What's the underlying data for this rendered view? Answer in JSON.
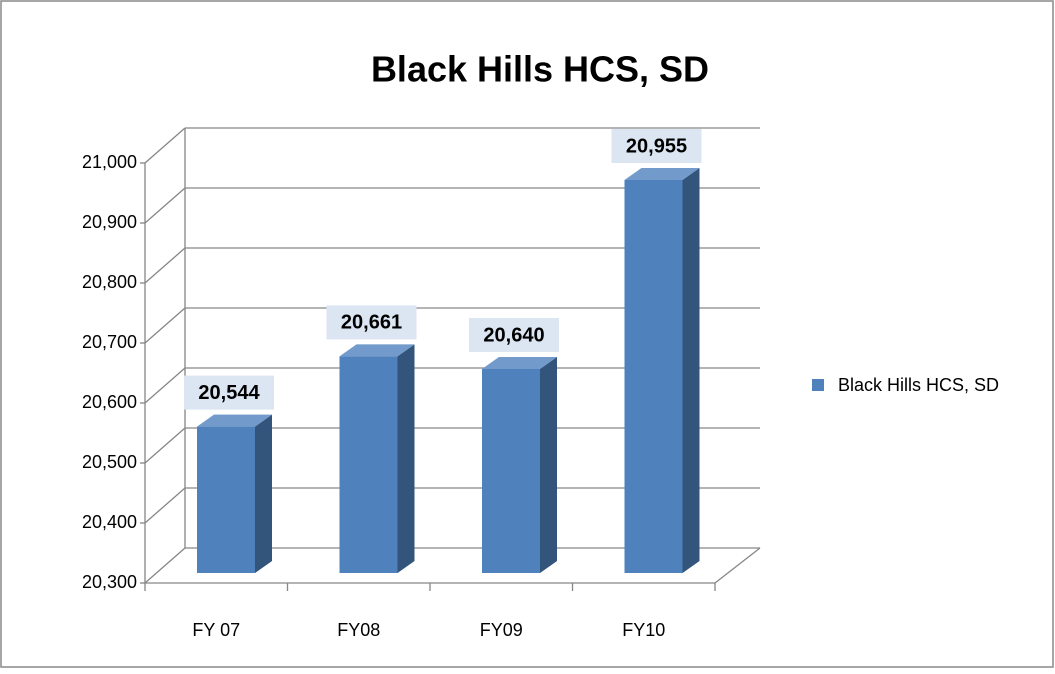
{
  "chart_data": {
    "type": "bar3d",
    "title": "Black Hills HCS, SD",
    "categories": [
      "FY 07",
      "FY08",
      "FY09",
      "FY10"
    ],
    "series": [
      {
        "name": "Black Hills HCS, SD",
        "color": "#4f81bd",
        "values": [
          20544,
          20661,
          20640,
          20955
        ],
        "value_labels": [
          "20,544",
          "20,661",
          "20,640",
          "20,955"
        ]
      }
    ],
    "ylim": [
      20300,
      21000
    ],
    "yticks": [
      {
        "value": 20300,
        "label": "20,300"
      },
      {
        "value": 20400,
        "label": "20,400"
      },
      {
        "value": 20500,
        "label": "20,500"
      },
      {
        "value": 20600,
        "label": "20,600"
      },
      {
        "value": 20700,
        "label": "20,700"
      },
      {
        "value": 20800,
        "label": "20,800"
      },
      {
        "value": 20900,
        "label": "20,900"
      },
      {
        "value": 21000,
        "label": "21,000"
      }
    ],
    "grid": true,
    "legend": "right"
  }
}
